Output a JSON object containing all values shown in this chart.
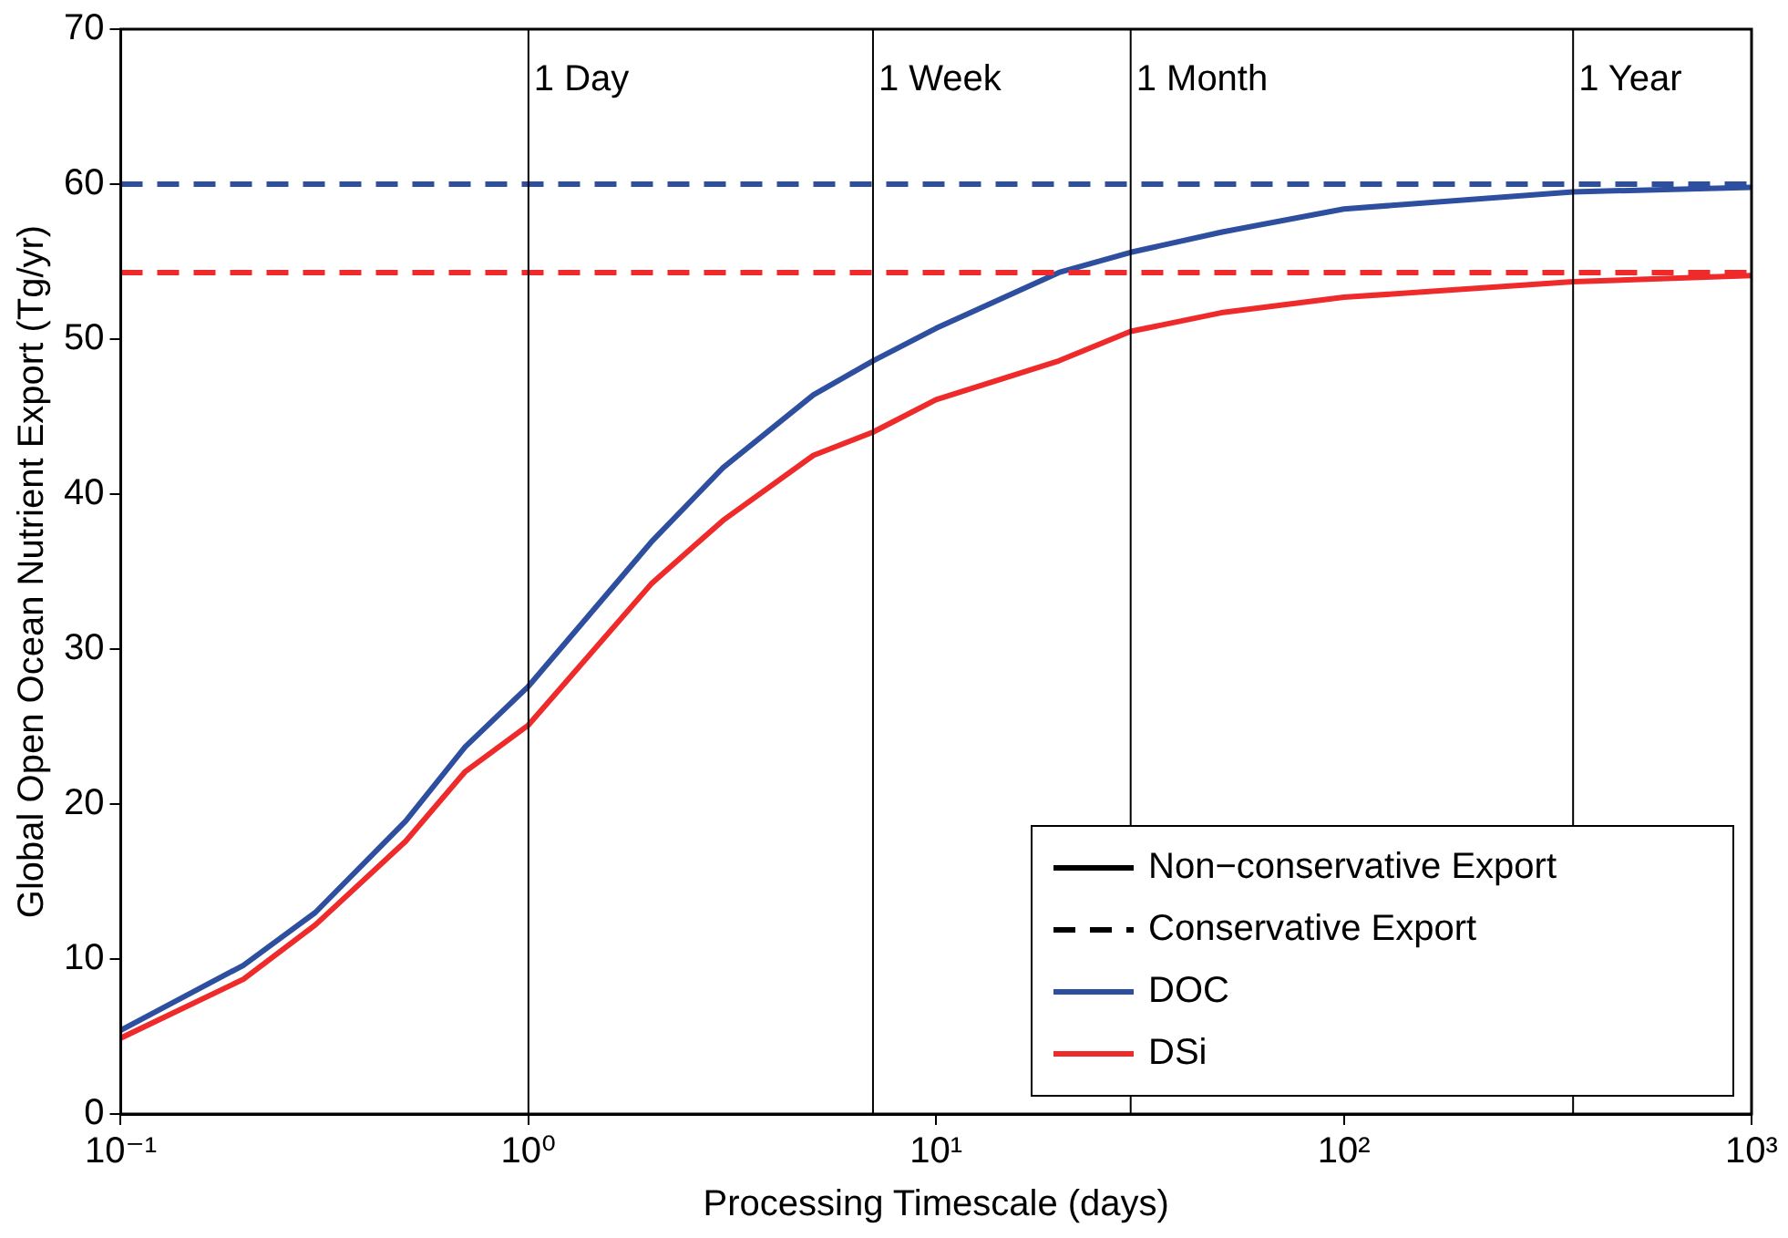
{
  "chart_data": {
    "type": "line",
    "xlabel": "Processing Timescale (days)",
    "ylabel": "Global Open Ocean Nutrient Export (Tg/yr)",
    "log": "x",
    "grid": false,
    "legend": "bottom right",
    "marker": "none",
    "x": [
      0.1,
      0.2,
      0.3,
      0.5,
      0.7,
      1,
      2,
      3,
      5,
      7,
      10,
      20,
      30,
      50,
      100,
      365,
      1000
    ],
    "xlim": [
      0.1,
      1000
    ],
    "xticks": [
      {
        "value": 0.1,
        "label": "10⁻¹"
      },
      {
        "value": 1,
        "label": "10⁰"
      },
      {
        "value": 10,
        "label": "10¹"
      },
      {
        "value": 100,
        "label": "10²"
      },
      {
        "value": 1000,
        "label": "10³"
      }
    ],
    "ylim": [
      0,
      70
    ],
    "yticks": [
      0,
      10,
      20,
      30,
      40,
      50,
      60,
      70
    ],
    "series": [
      {
        "name": "Non−conservative Export",
        "color": "#000000",
        "line_style": "solid",
        "values": [
          null,
          null,
          null,
          null,
          null,
          null,
          null,
          null,
          null,
          null,
          null,
          null,
          null,
          null,
          null,
          null,
          null
        ]
      },
      {
        "name": "Conservative Export",
        "color": "#000000",
        "line_style": "dashed",
        "values": [
          null,
          null,
          null,
          null,
          null,
          null,
          null,
          null,
          null,
          null,
          null,
          null,
          null,
          null,
          null,
          null,
          null
        ]
      },
      {
        "name": "DOC",
        "color": "#2e4f9f",
        "line_style": "solid",
        "values": [
          5.4,
          9.6,
          13.0,
          18.9,
          23.7,
          27.6,
          36.9,
          41.7,
          46.4,
          48.6,
          50.7,
          54.3,
          55.6,
          56.9,
          58.4,
          59.5,
          59.8
        ]
      },
      {
        "name": "DSi",
        "color": "#ee2a2a",
        "line_style": "solid",
        "values": [
          4.9,
          8.7,
          12.2,
          17.6,
          22.1,
          25.1,
          34.2,
          38.3,
          42.5,
          44.0,
          46.1,
          48.6,
          50.5,
          51.7,
          52.7,
          53.7,
          54.1
        ]
      }
    ],
    "ref_lines": [
      {
        "axis": "y",
        "value": 60.0,
        "color": "#2e4f9f",
        "line_style": "dashed"
      },
      {
        "axis": "y",
        "value": 54.3,
        "color": "#ee2a2a",
        "line_style": "dashed"
      },
      {
        "axis": "x",
        "value": 1,
        "label": "1 Day",
        "color": "#000000",
        "line_style": "solid"
      },
      {
        "axis": "x",
        "value": 7,
        "label": "1 Week",
        "color": "#000000",
        "line_style": "solid"
      },
      {
        "axis": "x",
        "value": 30,
        "label": "1 Month",
        "color": "#000000",
        "line_style": "solid"
      },
      {
        "axis": "x",
        "value": 365,
        "label": "1 Year",
        "color": "#000000",
        "line_style": "solid"
      }
    ]
  }
}
